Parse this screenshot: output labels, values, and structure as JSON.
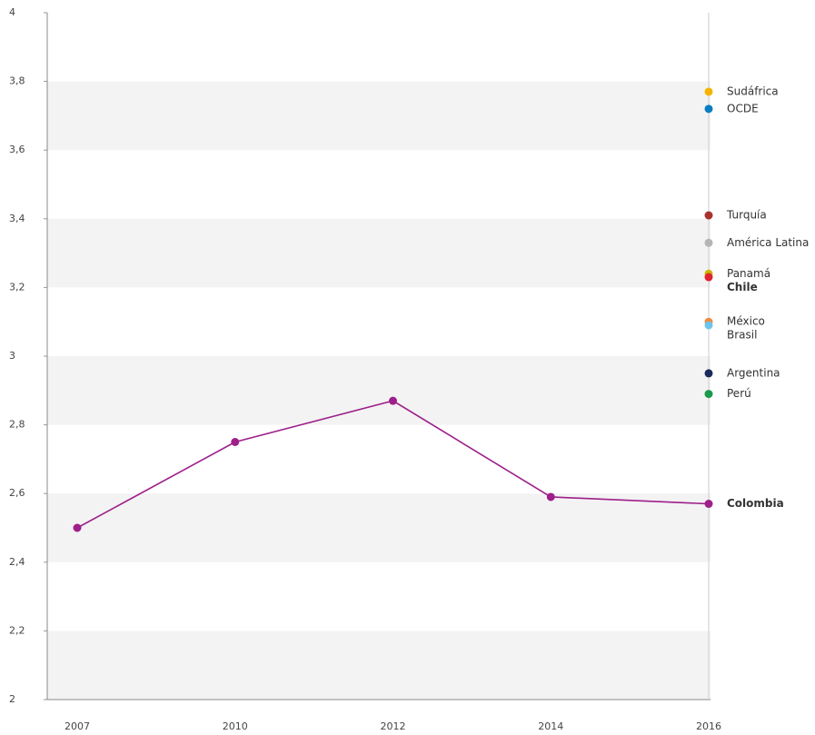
{
  "chart_data": {
    "type": "line",
    "categories": [
      "2007",
      "2010",
      "2012",
      "2014",
      "2016"
    ],
    "ylim": [
      2,
      4
    ],
    "yticks": [
      2,
      {
        "value": 2.2,
        "label": "2,2"
      },
      {
        "value": 2.4,
        "label": "2,4"
      },
      {
        "value": 2.6,
        "label": "2,6"
      },
      {
        "value": 2.8,
        "label": "2,8"
      },
      3,
      {
        "value": 3.2,
        "label": "3,2"
      },
      {
        "value": 3.4,
        "label": "3,4"
      },
      {
        "value": 3.6,
        "label": "3,6"
      },
      {
        "value": 3.8,
        "label": "3,8"
      },
      4
    ],
    "grid": "bands",
    "series": [
      {
        "name": "Sudáfrica",
        "color": "#f5b400",
        "values": [
          null,
          null,
          null,
          null,
          3.77
        ]
      },
      {
        "name": "OCDE",
        "color": "#0a7cc1",
        "values": [
          null,
          null,
          null,
          null,
          3.72
        ]
      },
      {
        "name": "Turquía",
        "color": "#a8322d",
        "values": [
          null,
          null,
          null,
          null,
          3.41
        ]
      },
      {
        "name": "América Latina",
        "color": "#b5b5b5",
        "values": [
          null,
          null,
          null,
          null,
          3.33
        ]
      },
      {
        "name": "Panamá",
        "color": "#c9b800",
        "values": [
          null,
          null,
          null,
          null,
          3.24
        ]
      },
      {
        "name": "Chile",
        "color": "#e0232e",
        "values": [
          null,
          null,
          null,
          null,
          3.23
        ],
        "bold": true
      },
      {
        "name": "México",
        "color": "#f08a3c",
        "values": [
          null,
          null,
          null,
          null,
          3.1
        ]
      },
      {
        "name": "Brasil",
        "color": "#6ec3ec",
        "values": [
          null,
          null,
          null,
          null,
          3.09
        ]
      },
      {
        "name": "Argentina",
        "color": "#1b2a5c",
        "values": [
          null,
          null,
          null,
          null,
          2.95
        ]
      },
      {
        "name": "Perú",
        "color": "#1a9a4a",
        "values": [
          null,
          null,
          null,
          null,
          2.89
        ]
      },
      {
        "name": "Colombia",
        "color": "#9e1f8a",
        "values": [
          2.5,
          2.75,
          2.87,
          2.59,
          2.57
        ],
        "bold": true
      }
    ]
  }
}
